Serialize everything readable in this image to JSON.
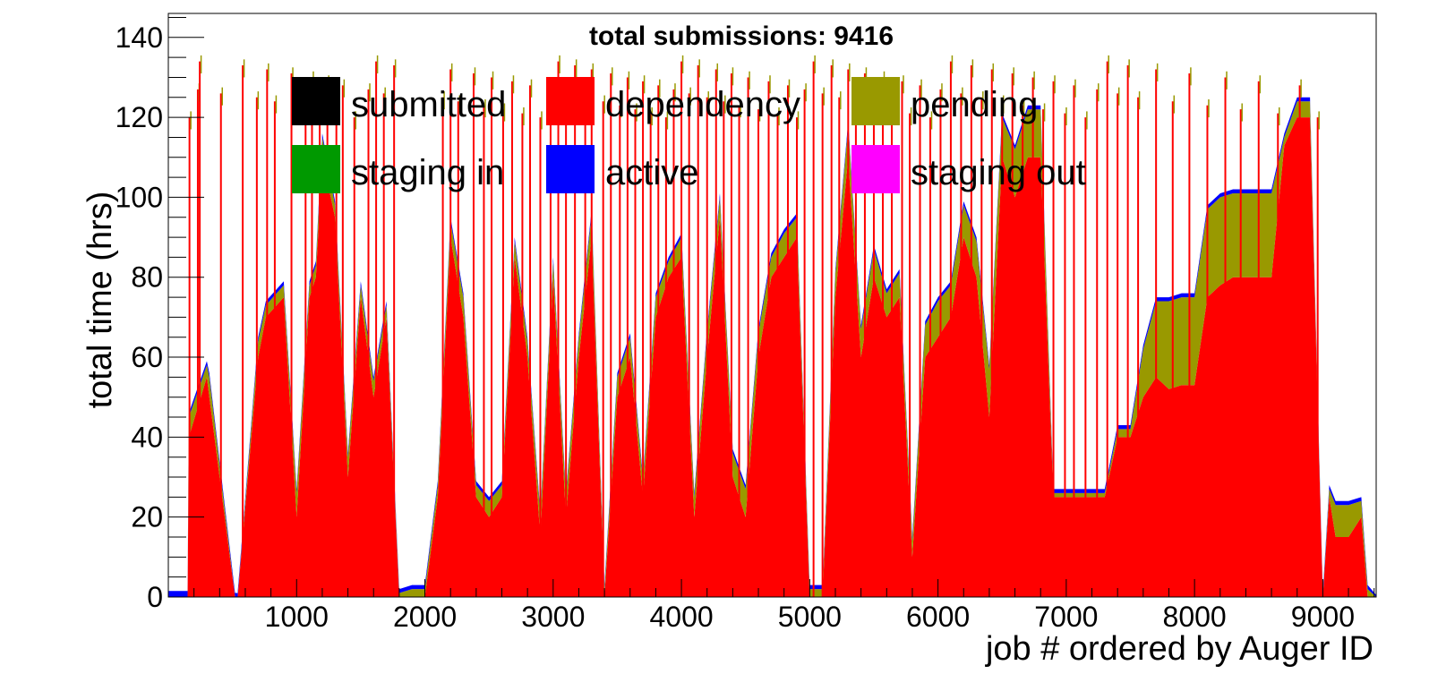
{
  "chart_data": {
    "type": "area",
    "title": "total submissions: 9416",
    "xlabel": "job # ordered by Auger ID",
    "ylabel": "total time (hrs)",
    "xlim": [
      0,
      9416
    ],
    "ylim": [
      0,
      146
    ],
    "x_ticks": [
      1000,
      2000,
      3000,
      4000,
      5000,
      6000,
      7000,
      8000,
      9000
    ],
    "y_ticks": [
      0,
      20,
      40,
      60,
      80,
      100,
      120,
      140
    ],
    "grid": false,
    "legend_position": "top",
    "stacking": "cumulative",
    "legend": [
      {
        "name": "submitted",
        "color": "#000000"
      },
      {
        "name": "dependency",
        "color": "#ff0000"
      },
      {
        "name": "pending",
        "color": "#999900"
      },
      {
        "name": "staging in",
        "color": "#009900"
      },
      {
        "name": "active",
        "color": "#0000ff"
      },
      {
        "name": "staging out",
        "color": "#ff00ff"
      }
    ],
    "series_profile": {
      "note_free": true,
      "x": [
        0,
        150,
        160,
        300,
        320,
        520,
        540,
        700,
        760,
        900,
        1000,
        1100,
        1150,
        1200,
        1300,
        1400,
        1500,
        1600,
        1700,
        1800,
        1900,
        2000,
        2100,
        2200,
        2300,
        2400,
        2500,
        2600,
        2700,
        2800,
        2900,
        3000,
        3100,
        3200,
        3300,
        3400,
        3500,
        3600,
        3700,
        3800,
        3900,
        4000,
        4100,
        4200,
        4300,
        4400,
        4500,
        4600,
        4700,
        4800,
        4900,
        5000,
        5100,
        5200,
        5300,
        5400,
        5500,
        5600,
        5700,
        5800,
        5900,
        6000,
        6100,
        6200,
        6300,
        6400,
        6500,
        6600,
        6700,
        6800,
        6900,
        7000,
        7100,
        7200,
        7300,
        7400,
        7500,
        7600,
        7700,
        7800,
        7900,
        8000,
        8100,
        8200,
        8300,
        8400,
        8500,
        8600,
        8700,
        8800,
        8900,
        9000,
        9050,
        9100,
        9200,
        9300,
        9350,
        9416
      ],
      "dependency": [
        0,
        0,
        40,
        55,
        50,
        0,
        0,
        60,
        70,
        75,
        20,
        75,
        80,
        110,
        95,
        30,
        75,
        50,
        70,
        0,
        0,
        0,
        25,
        90,
        70,
        25,
        20,
        25,
        85,
        60,
        15,
        80,
        20,
        60,
        90,
        0,
        50,
        60,
        25,
        70,
        80,
        85,
        20,
        60,
        95,
        30,
        20,
        60,
        80,
        85,
        90,
        0,
        0,
        75,
        110,
        60,
        80,
        70,
        75,
        10,
        60,
        65,
        70,
        90,
        80,
        45,
        110,
        100,
        110,
        110,
        25,
        25,
        25,
        25,
        25,
        40,
        40,
        50,
        55,
        52,
        53,
        53,
        75,
        78,
        80,
        80,
        80,
        80,
        113,
        120,
        120,
        0,
        25,
        15,
        15,
        20,
        0,
        0
      ],
      "pending": [
        0,
        0,
        5,
        3,
        5,
        0,
        0,
        4,
        3,
        3,
        6,
        3,
        3,
        5,
        3,
        5,
        3,
        4,
        3,
        1,
        2,
        2,
        3,
        4,
        5,
        3,
        4,
        3,
        4,
        4,
        5,
        4,
        5,
        5,
        6,
        2,
        5,
        5,
        4,
        5,
        4,
        5,
        5,
        6,
        5,
        6,
        7,
        6,
        5,
        6,
        5,
        2,
        2,
        6,
        8,
        7,
        7,
        6,
        6,
        4,
        8,
        9,
        8,
        8,
        9,
        12,
        10,
        12,
        12,
        12,
        1,
        1,
        1,
        1,
        1,
        2,
        2,
        12,
        19,
        22,
        22,
        22,
        22,
        22,
        21,
        21,
        21,
        21,
        2,
        4,
        4,
        0,
        2,
        8,
        8,
        4,
        2,
        0
      ],
      "active": [
        1.5,
        1.5,
        1,
        1,
        1,
        1,
        1,
        1,
        1,
        1,
        1,
        1,
        1,
        1,
        1,
        1,
        1,
        1,
        1,
        1,
        1,
        1,
        1,
        1,
        1,
        1,
        1,
        1,
        1,
        1,
        1,
        1,
        1,
        1,
        1,
        1,
        1,
        1,
        1,
        1,
        1,
        1,
        1,
        1,
        1,
        1,
        1,
        1,
        1,
        1,
        1,
        1,
        1,
        1,
        1,
        1,
        1,
        1,
        1,
        1,
        1,
        1,
        1,
        1,
        1,
        1,
        1,
        1,
        1,
        1,
        1,
        1,
        1,
        1,
        1,
        1,
        1,
        1,
        1,
        1,
        1,
        1,
        1,
        1,
        1,
        1,
        1,
        1,
        1,
        1,
        1,
        1,
        1,
        1,
        1,
        1,
        1,
        0.5
      ],
      "spikes": [
        165,
        230,
        245,
        410,
        580,
        690,
        770,
        830,
        960,
        1070,
        1120,
        1180,
        1240,
        1310,
        1360,
        1450,
        1560,
        1620,
        1680,
        1760,
        2140,
        2200,
        2260,
        2380,
        2460,
        2520,
        2610,
        2680,
        2760,
        2820,
        2900,
        2980,
        3040,
        3100,
        3170,
        3250,
        3300,
        3390,
        3450,
        3520,
        3580,
        3640,
        3700,
        3760,
        3820,
        3880,
        3940,
        4000,
        4060,
        4130,
        4200,
        4270,
        4330,
        4390,
        4450,
        4520,
        4600,
        4680,
        4750,
        4830,
        4900,
        4960,
        5030,
        5100,
        5170,
        5230,
        5300,
        5360,
        5430,
        5500,
        5570,
        5640,
        5720,
        5780,
        5860,
        5940,
        6020,
        6100,
        6180,
        6260,
        6340,
        6420,
        6500,
        6580,
        6660,
        6740,
        6820,
        6900,
        6990,
        7060,
        7150,
        7240,
        7320,
        7400,
        7480,
        7560,
        7700,
        7830,
        7960,
        8100,
        8240,
        8360,
        8500,
        8650,
        8820,
        8960
      ]
    }
  }
}
